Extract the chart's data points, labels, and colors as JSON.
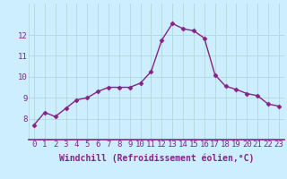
{
  "x": [
    0,
    1,
    2,
    3,
    4,
    5,
    6,
    7,
    8,
    9,
    10,
    11,
    12,
    13,
    14,
    15,
    16,
    17,
    18,
    19,
    20,
    21,
    22,
    23
  ],
  "y": [
    7.7,
    8.3,
    8.1,
    8.5,
    8.9,
    9.0,
    9.3,
    9.5,
    9.5,
    9.5,
    9.7,
    10.25,
    11.75,
    12.55,
    12.3,
    12.2,
    11.85,
    10.1,
    9.55,
    9.4,
    9.2,
    9.1,
    8.7,
    8.6
  ],
  "line_color": "#882288",
  "marker": "D",
  "marker_size": 2.5,
  "bg_color": "#cceeff",
  "grid_color": "#b0d8d8",
  "xlabel": "Windchill (Refroidissement éolien,°C)",
  "ylim": [
    7.0,
    13.5
  ],
  "xlim": [
    -0.5,
    23.5
  ],
  "yticks": [
    8,
    9,
    10,
    11,
    12
  ],
  "xticks": [
    0,
    1,
    2,
    3,
    4,
    5,
    6,
    7,
    8,
    9,
    10,
    11,
    12,
    13,
    14,
    15,
    16,
    17,
    18,
    19,
    20,
    21,
    22,
    23
  ],
  "tick_fontsize": 6.5,
  "xlabel_fontsize": 7,
  "line_width": 1.0,
  "axis_color": "#882288",
  "label_color": "#882288"
}
